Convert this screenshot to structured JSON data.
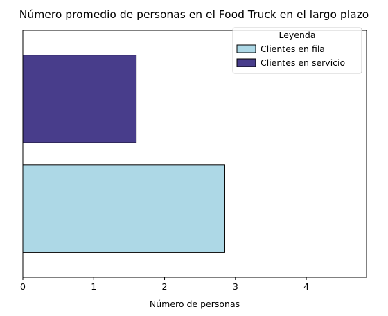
{
  "chart_data": {
    "type": "bar",
    "orientation": "horizontal",
    "title": "Número promedio de personas en el Food Truck en el largo plazo",
    "xlabel": "Número de personas",
    "ylabel": "",
    "xlim": [
      0,
      4.85
    ],
    "xticks": [
      0,
      1,
      2,
      3,
      4
    ],
    "grid": false,
    "legend": {
      "title": "Leyenda",
      "placement": "top-right"
    },
    "series": [
      {
        "name": "Clientes en fila",
        "value": 2.85,
        "color": "#add8e6"
      },
      {
        "name": "Clientes en servicio",
        "value": 1.6,
        "color": "#483d8b"
      }
    ]
  }
}
